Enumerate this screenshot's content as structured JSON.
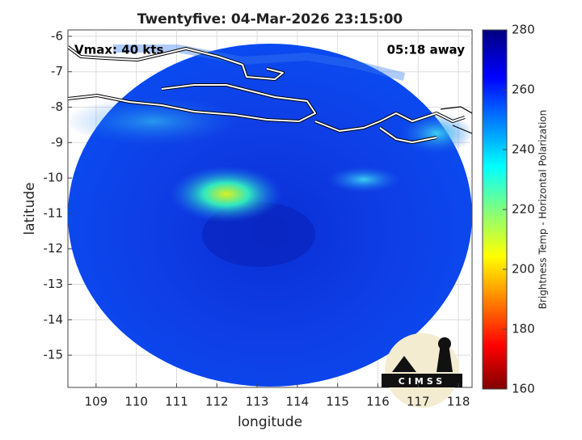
{
  "map": {
    "title": "Twentyfive: 04-Mar-2026 23:15:00",
    "annotations": [
      "Vmax: 40 kts",
      "05:18 away"
    ],
    "xlabel": "longitude",
    "ylabel": "latitude",
    "xlim": [
      108.3,
      118.34
    ],
    "ylim": [
      -15.91,
      -5.82
    ],
    "xticks": [
      109,
      110,
      111,
      112,
      113,
      114,
      115,
      116,
      117,
      118
    ],
    "yticks": [
      -6,
      -7,
      -8,
      -9,
      -10,
      -11,
      -12,
      -13,
      -14,
      -15
    ],
    "grid": true
  },
  "colorbar": {
    "label": "Brightness Temp - Horizontal Polarization",
    "lim": [
      160,
      280
    ],
    "ticks": [
      160,
      180,
      200,
      220,
      240,
      260,
      280
    ]
  },
  "logo": "CIMSS"
}
